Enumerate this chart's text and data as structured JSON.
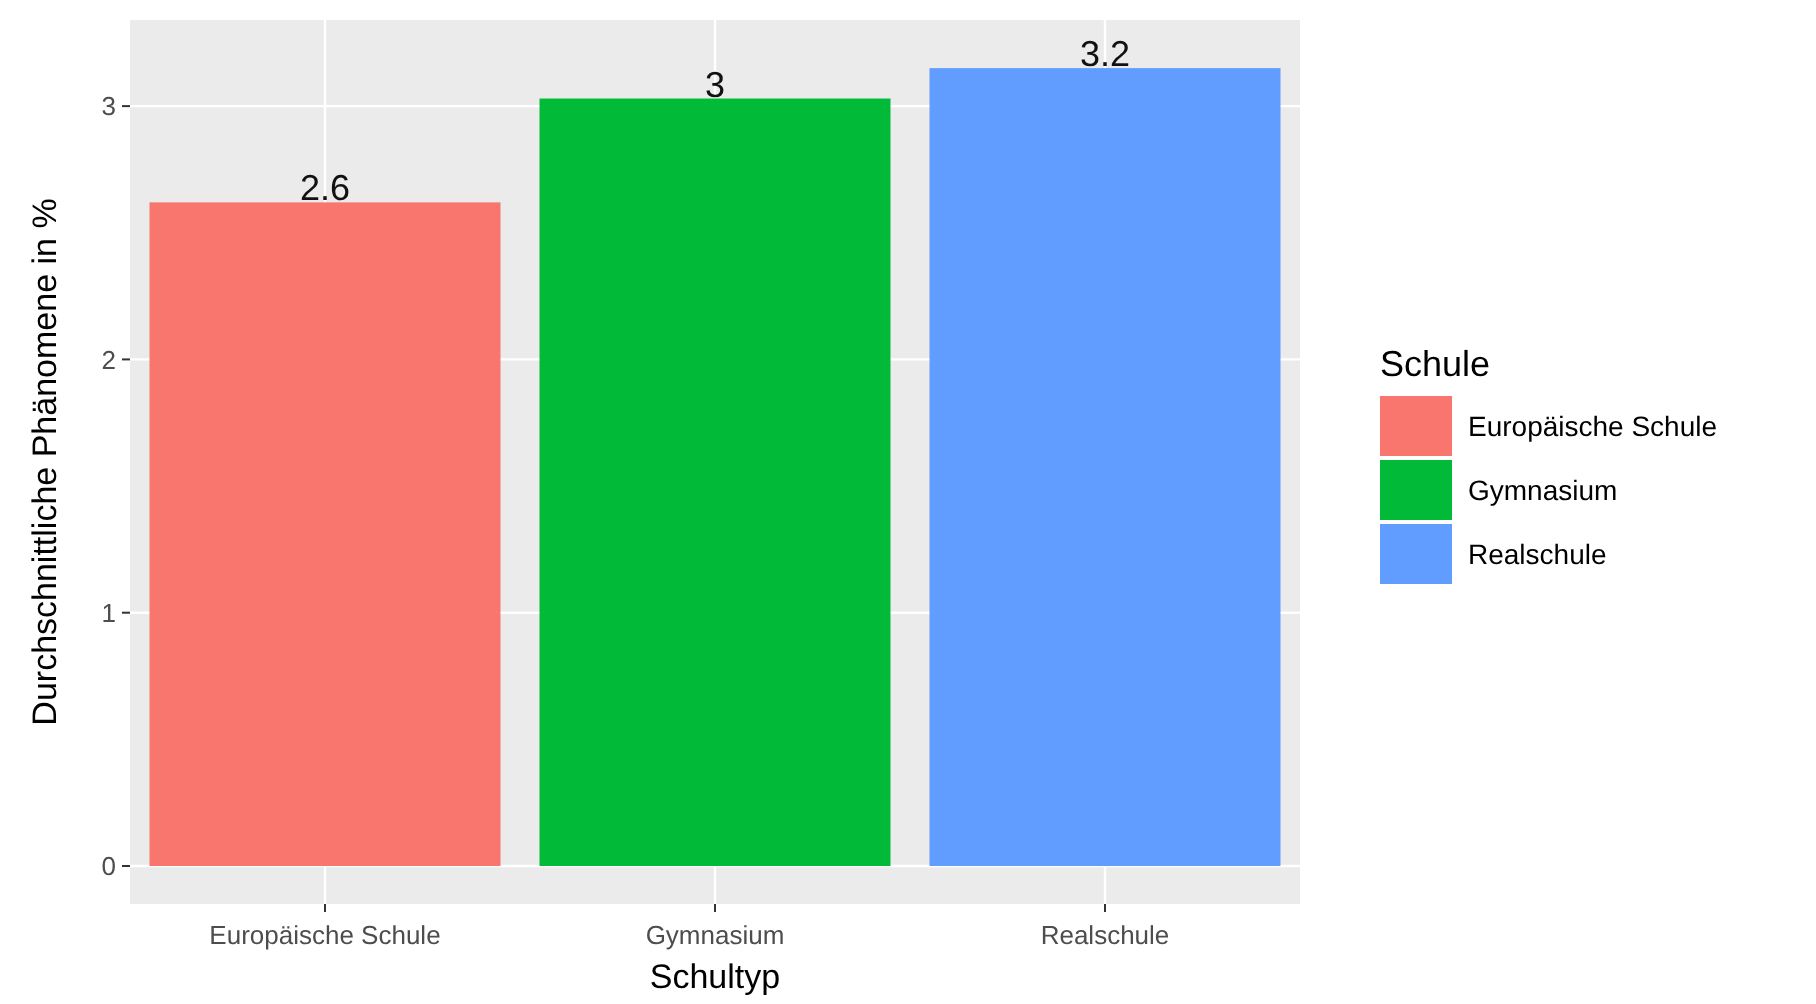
{
  "chart_data": {
    "type": "bar",
    "xlabel": "Schultyp",
    "ylabel": "Durchschnittliche Phänomene in %",
    "legend_title": "Schule",
    "categories": [
      "Europäische Schule",
      "Gymnasium",
      "Realschule"
    ],
    "stacked": true,
    "series": [
      {
        "name": "Europäische Schule",
        "color": "#f8766d",
        "values": [
          2.62,
          null,
          null
        ],
        "value_labels": [
          "2.6",
          null,
          null
        ]
      },
      {
        "name": "Gymnasium",
        "color": "#00ba38",
        "values": [
          null,
          3.03,
          null
        ],
        "value_labels": [
          null,
          "3",
          null
        ]
      },
      {
        "name": "Realschule",
        "color": "#619cff",
        "values": [
          null,
          null,
          3.15
        ],
        "value_labels": [
          null,
          null,
          "3.2"
        ]
      }
    ],
    "ylim": [
      -0.15,
      3.34
    ],
    "yticks": [
      0,
      1,
      2,
      3
    ],
    "grid": true,
    "legend": "right"
  }
}
